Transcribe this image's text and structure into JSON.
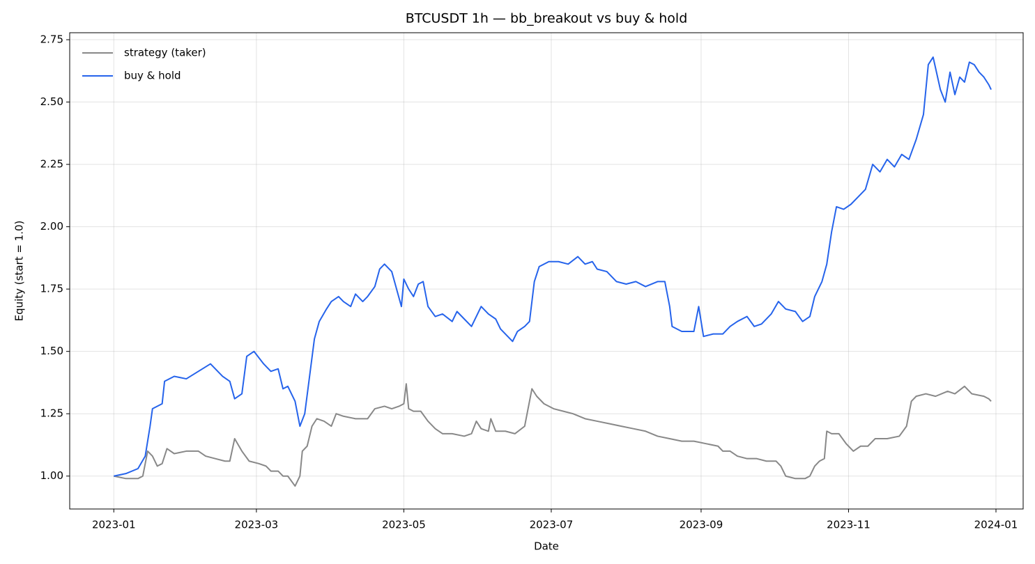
{
  "chart_data": {
    "type": "line",
    "title": "BTCUSDT 1h — bb_breakout vs buy & hold",
    "xlabel": "Date",
    "ylabel": "Equity (start = 1.0)",
    "xlim": [
      -18.25,
      376.25
    ],
    "xticks": [
      {
        "value": 0,
        "label": "2023-01"
      },
      {
        "value": 59,
        "label": "2023-03"
      },
      {
        "value": 120,
        "label": "2023-05"
      },
      {
        "value": 181,
        "label": "2023-07"
      },
      {
        "value": 243,
        "label": "2023-09"
      },
      {
        "value": 304,
        "label": "2023-11"
      },
      {
        "value": 365,
        "label": "2024-01"
      }
    ],
    "ylim": [
      0.868,
      2.778
    ],
    "yticks": [
      {
        "value": 1.0,
        "label": "1.00"
      },
      {
        "value": 1.25,
        "label": "1.25"
      },
      {
        "value": 1.5,
        "label": "1.50"
      },
      {
        "value": 1.75,
        "label": "1.75"
      },
      {
        "value": 2.0,
        "label": "2.00"
      },
      {
        "value": 2.25,
        "label": "2.25"
      },
      {
        "value": 2.5,
        "label": "2.50"
      },
      {
        "value": 2.75,
        "label": "2.75"
      }
    ],
    "grid": true,
    "legend": "upper-left",
    "series": [
      {
        "name": "strategy (taker)",
        "color": "#888888",
        "x": [
          0,
          5,
          10,
          12,
          14,
          16,
          18,
          20,
          22,
          25,
          30,
          35,
          38,
          42,
          46,
          48,
          50,
          53,
          56,
          60,
          63,
          65,
          68,
          70,
          72,
          75,
          77,
          78,
          80,
          82,
          84,
          87,
          90,
          92,
          95,
          100,
          105,
          108,
          112,
          115,
          118,
          120,
          121,
          122,
          124,
          127,
          130,
          133,
          136,
          140,
          145,
          148,
          150,
          152,
          155,
          156,
          158,
          162,
          166,
          170,
          172,
          173,
          175,
          178,
          182,
          186,
          190,
          195,
          200,
          205,
          210,
          215,
          220,
          225,
          230,
          235,
          240,
          245,
          250,
          252,
          255,
          258,
          262,
          266,
          270,
          274,
          276,
          278,
          282,
          286,
          288,
          290,
          292,
          294,
          295,
          297,
          300,
          303,
          306,
          309,
          312,
          315,
          320,
          325,
          328,
          330,
          332,
          336,
          340,
          345,
          348,
          352,
          355,
          360,
          362,
          363
        ],
        "values": [
          1.0,
          0.99,
          0.99,
          1.0,
          1.1,
          1.08,
          1.04,
          1.05,
          1.11,
          1.09,
          1.1,
          1.1,
          1.08,
          1.07,
          1.06,
          1.06,
          1.15,
          1.1,
          1.06,
          1.05,
          1.04,
          1.02,
          1.02,
          1.0,
          1.0,
          0.96,
          1.0,
          1.1,
          1.12,
          1.2,
          1.23,
          1.22,
          1.2,
          1.25,
          1.24,
          1.23,
          1.23,
          1.27,
          1.28,
          1.27,
          1.28,
          1.29,
          1.37,
          1.27,
          1.26,
          1.26,
          1.22,
          1.19,
          1.17,
          1.17,
          1.16,
          1.17,
          1.22,
          1.19,
          1.18,
          1.23,
          1.18,
          1.18,
          1.17,
          1.2,
          1.3,
          1.35,
          1.32,
          1.29,
          1.27,
          1.26,
          1.25,
          1.23,
          1.22,
          1.21,
          1.2,
          1.19,
          1.18,
          1.16,
          1.15,
          1.14,
          1.14,
          1.13,
          1.12,
          1.1,
          1.1,
          1.08,
          1.07,
          1.07,
          1.06,
          1.06,
          1.04,
          1.0,
          0.99,
          0.99,
          1.0,
          1.04,
          1.06,
          1.07,
          1.18,
          1.17,
          1.17,
          1.13,
          1.1,
          1.12,
          1.12,
          1.15,
          1.15,
          1.16,
          1.2,
          1.3,
          1.32,
          1.33,
          1.32,
          1.34,
          1.33,
          1.36,
          1.33,
          1.32,
          1.31,
          1.3
        ]
      },
      {
        "name": "buy & hold",
        "color": "#2563eb",
        "x": [
          0,
          5,
          10,
          13,
          15,
          16,
          20,
          21,
          25,
          30,
          35,
          40,
          45,
          48,
          50,
          53,
          55,
          58,
          62,
          65,
          68,
          70,
          72,
          75,
          77,
          79,
          81,
          83,
          85,
          88,
          90,
          93,
          95,
          98,
          100,
          103,
          105,
          108,
          110,
          112,
          115,
          117,
          119,
          120,
          122,
          124,
          126,
          128,
          130,
          133,
          136,
          140,
          142,
          145,
          148,
          152,
          155,
          158,
          160,
          163,
          165,
          167,
          170,
          172,
          174,
          176,
          180,
          184,
          188,
          192,
          195,
          198,
          200,
          204,
          208,
          212,
          216,
          220,
          225,
          228,
          230,
          231,
          235,
          240,
          242,
          244,
          248,
          252,
          255,
          258,
          262,
          265,
          268,
          272,
          275,
          278,
          282,
          285,
          288,
          290,
          293,
          295,
          297,
          299,
          302,
          305,
          308,
          311,
          314,
          317,
          320,
          323,
          326,
          329,
          332,
          335,
          337,
          339,
          342,
          344,
          346,
          348,
          350,
          352,
          354,
          356,
          358,
          360,
          362,
          363
        ],
        "values": [
          1.0,
          1.01,
          1.03,
          1.08,
          1.2,
          1.27,
          1.29,
          1.38,
          1.4,
          1.39,
          1.42,
          1.45,
          1.4,
          1.38,
          1.31,
          1.33,
          1.48,
          1.5,
          1.45,
          1.42,
          1.43,
          1.35,
          1.36,
          1.3,
          1.2,
          1.25,
          1.4,
          1.55,
          1.62,
          1.67,
          1.7,
          1.72,
          1.7,
          1.68,
          1.73,
          1.7,
          1.72,
          1.76,
          1.83,
          1.85,
          1.82,
          1.75,
          1.68,
          1.79,
          1.75,
          1.72,
          1.77,
          1.78,
          1.68,
          1.64,
          1.65,
          1.62,
          1.66,
          1.63,
          1.6,
          1.68,
          1.65,
          1.63,
          1.59,
          1.56,
          1.54,
          1.58,
          1.6,
          1.62,
          1.78,
          1.84,
          1.86,
          1.86,
          1.85,
          1.88,
          1.85,
          1.86,
          1.83,
          1.82,
          1.78,
          1.77,
          1.78,
          1.76,
          1.78,
          1.78,
          1.68,
          1.6,
          1.58,
          1.58,
          1.68,
          1.56,
          1.57,
          1.57,
          1.6,
          1.62,
          1.64,
          1.6,
          1.61,
          1.65,
          1.7,
          1.67,
          1.66,
          1.62,
          1.64,
          1.72,
          1.78,
          1.85,
          1.98,
          2.08,
          2.07,
          2.09,
          2.12,
          2.15,
          2.25,
          2.22,
          2.27,
          2.24,
          2.29,
          2.27,
          2.35,
          2.45,
          2.65,
          2.68,
          2.55,
          2.5,
          2.62,
          2.53,
          2.6,
          2.58,
          2.66,
          2.65,
          2.62,
          2.6,
          2.57,
          2.55
        ]
      }
    ]
  }
}
